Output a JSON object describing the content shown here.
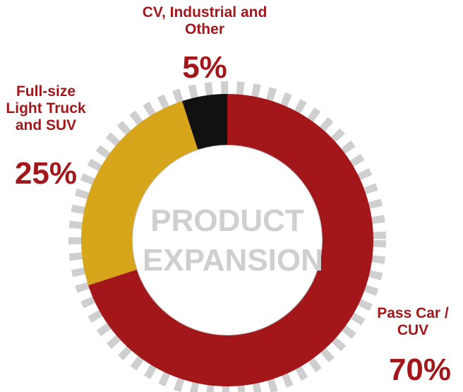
{
  "chart_data": {
    "type": "donut",
    "center_label": "PRODUCT EXPANSION",
    "categories": [
      "Pass Car / CUV",
      "Full-size Light Truck and SUV",
      "CV, Industrial and Other"
    ],
    "values": [
      70,
      25,
      5
    ],
    "value_labels": [
      "70%",
      "25%",
      "5%"
    ],
    "colors": [
      "#a3171b",
      "#d6a51a",
      "#111111"
    ]
  }
}
